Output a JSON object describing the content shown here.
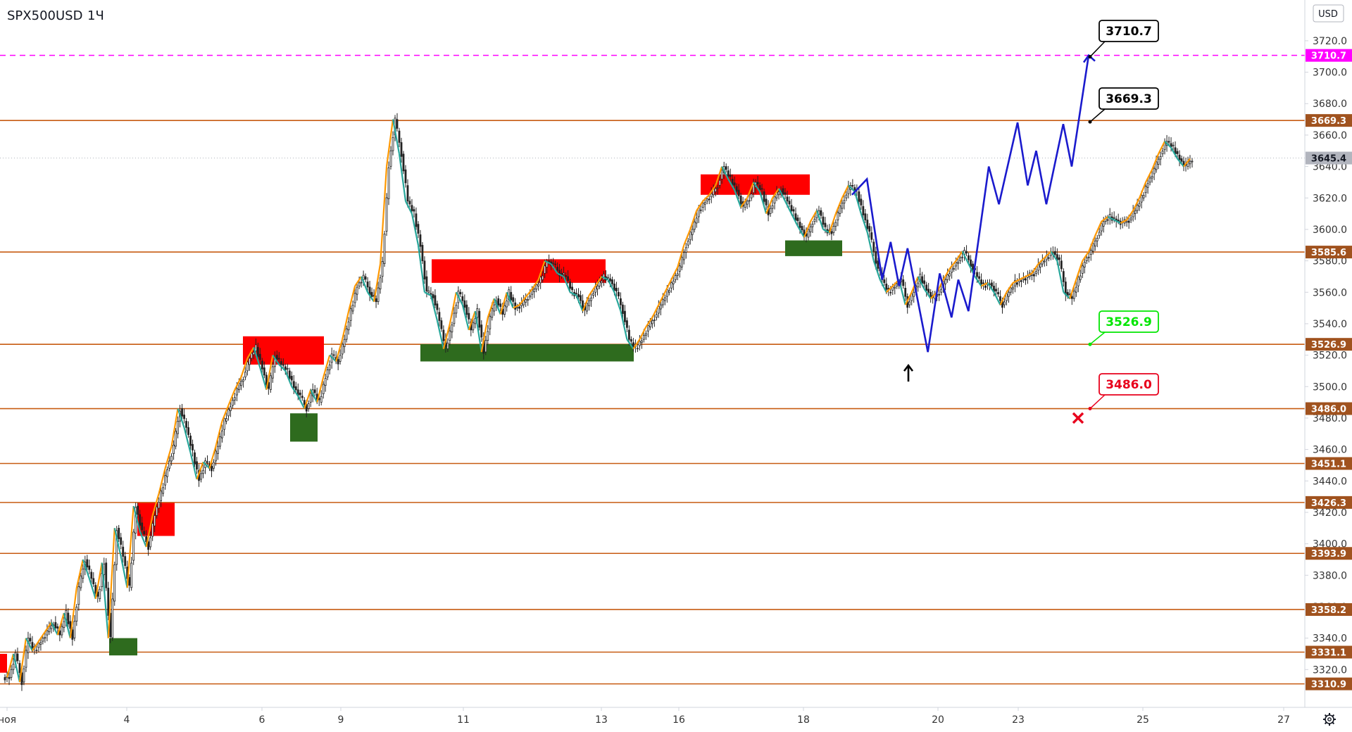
{
  "header": {
    "symbol": "SPX500USD",
    "interval": "1Ч",
    "currency": "USD"
  },
  "colors": {
    "level_line": "#c75b12",
    "level_badge": "#a0521e",
    "target_line": "#ff00ff",
    "supply_zone": "#ff0000",
    "demand_zone": "#2e6b1e",
    "zigzag_up": "#ff9800",
    "zigzag_down": "#26a69a",
    "forecast": "#1a1acd",
    "current_price_badge": "#b2b5be",
    "callout_black": "#000000",
    "callout_green": "#00e600",
    "callout_red": "#e8001c"
  },
  "chart_data": {
    "type": "candlestick",
    "title": "",
    "xlabel": "",
    "ylabel": "",
    "ylim": [
      3300,
      3736
    ],
    "grid": false,
    "x_ticks": [
      "ноя",
      "4",
      "6",
      "9",
      "11",
      "13",
      "16",
      "18",
      "20",
      "23",
      "25",
      "27"
    ],
    "y_ticks": [
      3320.0,
      3340.0,
      3360.0,
      3380.0,
      3400.0,
      3420.0,
      3440.0,
      3460.0,
      3480.0,
      3500.0,
      3520.0,
      3540.0,
      3560.0,
      3580.0,
      3600.0,
      3620.0,
      3640.0,
      3660.0,
      3680.0,
      3700.0,
      3720.0
    ],
    "current_price": "3645.4",
    "target_level": "3710.7",
    "levels": [
      "3669.3",
      "3585.6",
      "3526.9",
      "3486.0",
      "3451.1",
      "3426.3",
      "3393.9",
      "3358.2",
      "3331.1",
      "3310.9"
    ],
    "price_path": [
      3315,
      3330,
      3312,
      3340,
      3332,
      3338,
      3344,
      3350,
      3342,
      3356,
      3340,
      3372,
      3390,
      3378,
      3365,
      3388,
      3340,
      3410,
      3392,
      3372,
      3424,
      3408,
      3398,
      3418,
      3432,
      3448,
      3462,
      3486,
      3474,
      3458,
      3441,
      3452,
      3448,
      3462,
      3478,
      3488,
      3498,
      3506,
      3518,
      3525,
      3512,
      3498,
      3520,
      3514,
      3510,
      3500,
      3494,
      3486,
      3498,
      3490,
      3506,
      3520,
      3516,
      3530,
      3548,
      3564,
      3570,
      3560,
      3554,
      3578,
      3640,
      3670,
      3648,
      3618,
      3610,
      3590,
      3560,
      3558,
      3542,
      3524,
      3540,
      3560,
      3552,
      3536,
      3548,
      3522,
      3544,
      3556,
      3546,
      3560,
      3550,
      3552,
      3557,
      3562,
      3568,
      3580,
      3578,
      3572,
      3570,
      3560,
      3558,
      3548,
      3558,
      3564,
      3570,
      3568,
      3560,
      3548,
      3530,
      3524,
      3530,
      3538,
      3544,
      3552,
      3560,
      3568,
      3576,
      3590,
      3600,
      3612,
      3618,
      3622,
      3628,
      3640,
      3632,
      3625,
      3614,
      3620,
      3630,
      3624,
      3610,
      3620,
      3626,
      3618,
      3610,
      3602,
      3595,
      3605,
      3612,
      3600,
      3598,
      3610,
      3620,
      3628,
      3624,
      3610,
      3598,
      3580,
      3568,
      3560,
      3564,
      3568,
      3552,
      3560,
      3570,
      3562,
      3556,
      3560,
      3568,
      3575,
      3580,
      3586,
      3578,
      3570,
      3564,
      3566,
      3560,
      3552,
      3560,
      3566,
      3568,
      3570,
      3572,
      3578,
      3582,
      3586,
      3580,
      3560,
      3556,
      3568,
      3580,
      3586,
      3596,
      3605,
      3608,
      3606,
      3604,
      3606,
      3612,
      3620,
      3630,
      3638,
      3648,
      3656,
      3652,
      3645,
      3640,
      3645
    ],
    "zones": [
      {
        "kind": "supply",
        "x": [
          -1,
          0
        ],
        "y": [
          3318,
          3330
        ]
      },
      {
        "kind": "supply",
        "x": [
          3.3,
          3.58
        ],
        "y": [
          3405,
          3426
        ]
      },
      {
        "kind": "demand",
        "x": [
          2.85,
          3.3
        ],
        "y": [
          3329,
          3340
        ]
      },
      {
        "kind": "supply",
        "x": [
          5.87,
          7.12
        ],
        "y": [
          3514,
          3532
        ]
      },
      {
        "kind": "demand",
        "x": [
          7.05,
          7.35
        ],
        "y": [
          3465,
          3483
        ]
      },
      {
        "kind": "supply",
        "x": [
          10.45,
          13.4
        ],
        "y": [
          3566,
          3581
        ]
      },
      {
        "kind": "demand",
        "x": [
          10.32,
          13.6
        ],
        "y": [
          3516,
          3527
        ]
      },
      {
        "kind": "supply",
        "x": [
          16.3,
          18.05
        ],
        "y": [
          3622,
          3635
        ]
      },
      {
        "kind": "demand",
        "x": [
          17.95,
          18.65
        ],
        "y": [
          3583,
          3593
        ]
      }
    ],
    "forecast_path": [
      [
        18.86,
        3622
      ],
      [
        19.3,
        3632
      ],
      [
        19.75,
        3568
      ],
      [
        20.0,
        3592
      ],
      [
        20.25,
        3564
      ],
      [
        20.5,
        3588
      ],
      [
        21.1,
        3522
      ],
      [
        21.45,
        3572
      ],
      [
        21.8,
        3544
      ],
      [
        22.0,
        3568
      ],
      [
        22.3,
        3548
      ],
      [
        22.9,
        3640
      ],
      [
        23.2,
        3616
      ],
      [
        23.75,
        3668
      ],
      [
        24.05,
        3628
      ],
      [
        24.3,
        3650
      ],
      [
        24.6,
        3616
      ],
      [
        25.1,
        3667
      ],
      [
        25.35,
        3640
      ],
      [
        25.85,
        3710.7
      ]
    ],
    "callouts": [
      {
        "label": "3710.7",
        "style": "black"
      },
      {
        "label": "3669.3",
        "style": "black"
      },
      {
        "label": "3526.9",
        "style": "green"
      },
      {
        "label": "3486.0",
        "style": "red"
      }
    ]
  }
}
